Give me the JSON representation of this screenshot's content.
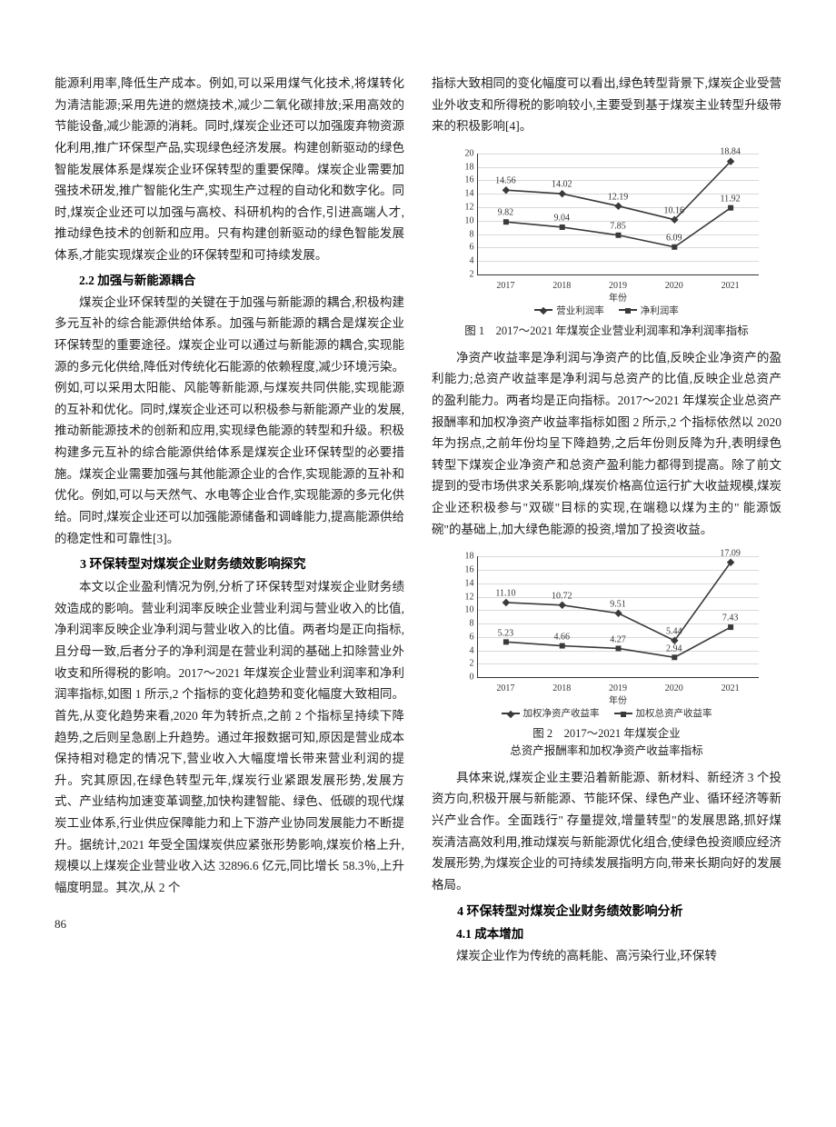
{
  "page_number": "86",
  "left_column": {
    "p1": "能源利用率,降低生产成本。例如,可以采用煤气化技术,将煤转化为清洁能源;采用先进的燃烧技术,减少二氧化碳排放;采用高效的节能设备,减少能源的消耗。同时,煤炭企业还可以加强废弃物资源化利用,推广环保型产品,实现绿色经济发展。构建创新驱动的绿色智能发展体系是煤炭企业环保转型的重要保障。煤炭企业需要加强技术研发,推广智能化生产,实现生产过程的自动化和数字化。同时,煤炭企业还可以加强与高校、科研机构的合作,引进高端人才,推动绿色技术的创新和应用。只有构建创新驱动的绿色智能发展体系,才能实现煤炭企业的环保转型和可持续发展。",
    "h22": "2.2  加强与新能源耦合",
    "p2": "煤炭企业环保转型的关键在于加强与新能源的耦合,积极构建多元互补的综合能源供给体系。加强与新能源的耦合是煤炭企业环保转型的重要途径。煤炭企业可以通过与新能源的耦合,实现能源的多元化供给,降低对传统化石能源的依赖程度,减少环境污染。例如,可以采用太阳能、风能等新能源,与煤炭共同供能,实现能源的互补和优化。同时,煤炭企业还可以积极参与新能源产业的发展,推动新能源技术的创新和应用,实现绿色能源的转型和升级。积极构建多元互补的综合能源供给体系是煤炭企业环保转型的必要措施。煤炭企业需要加强与其他能源企业的合作,实现能源的互补和优化。例如,可以与天然气、水电等企业合作,实现能源的多元化供给。同时,煤炭企业还可以加强能源储备和调峰能力,提高能源供给的稳定性和可靠性[3]。",
    "h3": "3  环保转型对煤炭企业财务绩效影响探究",
    "p3": "本文以企业盈利情况为例,分析了环保转型对煤炭企业财务绩效造成的影响。营业利润率反映企业营业利润与营业收入的比值,净利润率反映企业净利润与营业收入的比值。两者均是正向指标,且分母一致,后者分子的净利润是在营业利润的基础上扣除营业外收支和所得税的影响。2017～2021 年煤炭企业营业利润率和净利润率指标,如图 1 所示,2 个指标的变化趋势和变化幅度大致相同。首先,从变化趋势来看,2020 年为转折点,之前 2 个指标呈持续下降趋势,之后则呈急剧上升趋势。通过年报数据可知,原因是营业成本保持相对稳定的情况下,营业收入大幅度增长带来营业利润的提升。究其原因,在绿色转型元年,煤炭行业紧跟发展形势,发展方式、产业结构加速变革调整,加快构建智能、绿色、低碳的现代煤炭工业体系,行业供应保障能力和上下游产业协同发展能力不断提升。据统计,2021 年受全国煤炭供应紧张形势影响,煤炭价格上升,规模以上煤炭企业营业收入达 32896.6 亿元,同比增长 58.3％,上升幅度明显。其次,从 2 个"
  },
  "right_column": {
    "p_top": "指标大致相同的变化幅度可以看出,绿色转型背景下,煤炭企业受营业外收支和所得税的影响较小,主要受到基于煤炭主业转型升级带来的积极影响[4]。",
    "fig1_caption": "图 1　2017～2021 年煤炭企业营业利润率和净利润率指标",
    "p_mid": "净资产收益率是净利润与净资产的比值,反映企业净资产的盈利能力;总资产收益率是净利润与总资产的比值,反映企业总资产的盈利能力。两者均是正向指标。2017～2021 年煤炭企业总资产报酬率和加权净资产收益率指标如图 2 所示,2 个指标依然以 2020 年为拐点,之前年份均呈下降趋势,之后年份则反降为升,表明绿色转型下煤炭企业净资产和总资产盈利能力都得到提高。除了前文提到的受市场供求关系影响,煤炭价格高位运行扩大收益规模,煤炭企业还积极参与\"双碳\"目标的实现,在端稳以煤为主的\" 能源饭碗\"的基础上,加大绿色能源的投资,增加了投资收益。",
    "fig2_caption_l1": "图 2　2017～2021 年煤炭企业",
    "fig2_caption_l2": "总资产报酬率和加权净资产收益率指标",
    "p_bottom": "具体来说,煤炭企业主要沿着新能源、新材料、新经济 3 个投资方向,积极开展与新能源、节能环保、绿色产业、循环经济等新兴产业合作。全面践行\" 存量提效,增量转型\"的发展思路,抓好煤炭清洁高效利用,推动煤炭与新能源优化组合,使绿色投资顺应经济发展形势,为煤炭企业的可持续发展指明方向,带来长期向好的发展格局。",
    "h4": "4  环保转型对煤炭企业财务绩效影响分析",
    "h41": "4.1  成本增加",
    "p_last": "煤炭企业作为传统的高耗能、高污染行业,环保转"
  },
  "chart1": {
    "type": "line",
    "categories": [
      "2017",
      "2018",
      "2019",
      "2020",
      "2021"
    ],
    "x_axis_label": "年份",
    "ylim": [
      2,
      20
    ],
    "ytick_step": 2,
    "series": [
      {
        "name": "营业利润率",
        "values": [
          14.56,
          14.02,
          12.19,
          10.16,
          18.84
        ],
        "color": "#3a3a3a",
        "marker": "diamond"
      },
      {
        "name": "净利润率",
        "values": [
          9.82,
          9.04,
          7.85,
          6.09,
          11.92
        ],
        "color": "#3a3a3a",
        "marker": "square"
      }
    ],
    "background_color": "#ffffff",
    "grid_color": "#d9d9d9"
  },
  "chart2": {
    "type": "line",
    "categories": [
      "2017",
      "2018",
      "2019",
      "2020",
      "2021"
    ],
    "x_axis_label": "年份",
    "ylim": [
      0,
      18
    ],
    "ytick_step": 2,
    "series": [
      {
        "name": "加权净资产收益率",
        "values": [
          11.1,
          10.72,
          9.51,
          5.44,
          17.09
        ],
        "color": "#3a3a3a",
        "marker": "diamond"
      },
      {
        "name": "加权总资产收益率",
        "values": [
          5.23,
          4.66,
          4.27,
          2.94,
          7.43
        ],
        "color": "#3a3a3a",
        "marker": "square"
      }
    ],
    "background_color": "#ffffff",
    "grid_color": "#d9d9d9"
  }
}
